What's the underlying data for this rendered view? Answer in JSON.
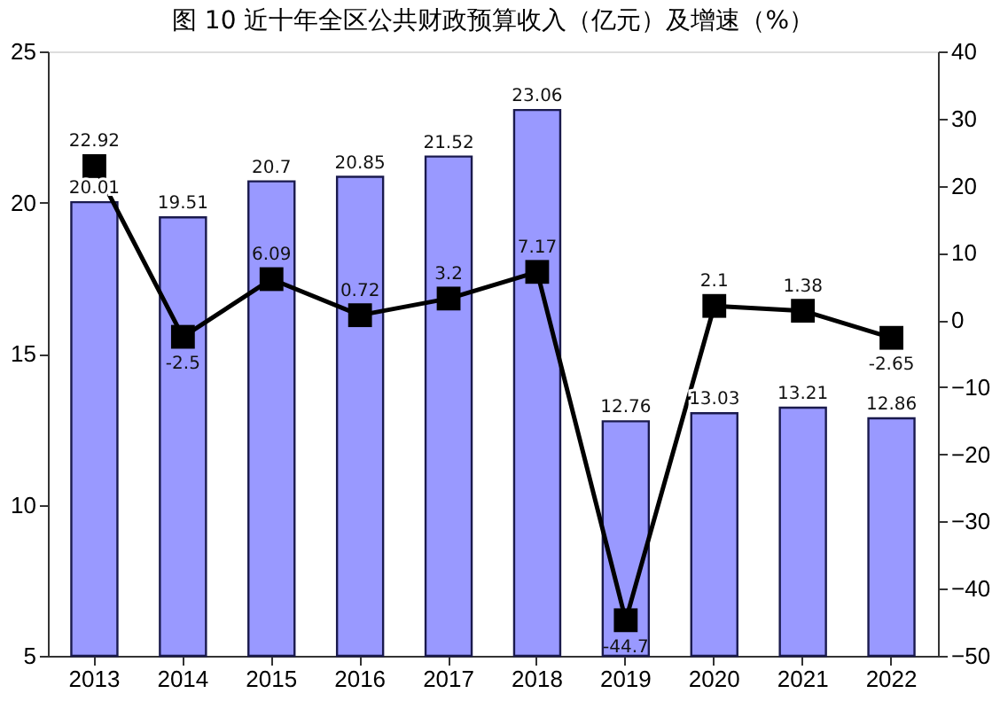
{
  "chart_data": {
    "type": "bar",
    "title": "图 10    近十年全区公共财政预算收入（亿元）及增速（%）",
    "categories": [
      "2013",
      "2014",
      "2015",
      "2016",
      "2017",
      "2018",
      "2019",
      "2020",
      "2021",
      "2022"
    ],
    "series": [
      {
        "color": "#9999ff",
        "values": [
          20.01,
          19.51,
          20.7,
          20.85,
          21.52,
          23.06,
          12.76,
          13.03,
          13.21,
          12.86
        ],
        "value_labels": [
          "20.01",
          "19.51",
          "20.7",
          "20.85",
          "21.52",
          "23.06",
          "12.76",
          "13.03",
          "13.21",
          "12.86"
        ]
      },
      {
        "type": "line",
        "axis": "y2",
        "color": "#000000",
        "marker": "square",
        "values": [
          22.92,
          -2.5,
          6.09,
          0.72,
          3.2,
          7.17,
          -44.7,
          2.1,
          1.38,
          -2.65
        ],
        "value_labels": [
          "22.92",
          "-2.5",
          "6.09",
          "0.72",
          "3.2",
          "7.17",
          "-44.7",
          "2.1",
          "1.38",
          "-2.65"
        ]
      }
    ],
    "ylim": [
      5,
      25
    ],
    "yticks": [
      5,
      10,
      15,
      20,
      25
    ],
    "y2lim": [
      -50,
      40
    ],
    "y2ticks": [
      -50,
      -40,
      -30,
      -20,
      -10,
      0,
      10,
      20,
      30,
      40
    ],
    "grid": false
  }
}
